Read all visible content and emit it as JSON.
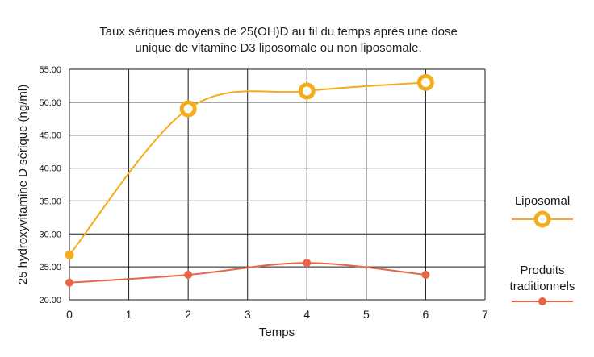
{
  "chart_data": {
    "type": "line",
    "title_lines": [
      "Taux sériques moyens de 25(OH)D au fil du temps après une dose",
      "unique de vitamine D3 liposomale ou non liposomale."
    ],
    "xlabel": "Temps",
    "ylabel": "25 hydroxyvitamine D sérique (ng/ml)",
    "xlim": [
      0,
      7
    ],
    "ylim": [
      20,
      55
    ],
    "x_ticks": [
      "0",
      "1",
      "2",
      "3",
      "4",
      "5",
      "6",
      "7"
    ],
    "y_ticks": [
      "20.00",
      "25.00",
      "30.00",
      "35.00",
      "40.00",
      "45.00",
      "50.00",
      "55.00"
    ],
    "grid": true,
    "legend_position": "right",
    "series": [
      {
        "name": "Liposomal",
        "legend_lines": [
          "Liposomal"
        ],
        "color": "#f5ac1b",
        "marker": "ring",
        "x": [
          0,
          2,
          4,
          6
        ],
        "values": [
          26.8,
          49.0,
          51.7,
          53.0
        ]
      },
      {
        "name": "Produits traditionnels",
        "legend_lines": [
          "Produits",
          "traditionnels"
        ],
        "color": "#ea6545",
        "marker": "dot",
        "x": [
          0,
          2,
          4,
          6
        ],
        "values": [
          22.6,
          23.8,
          25.6,
          23.8
        ]
      }
    ]
  }
}
